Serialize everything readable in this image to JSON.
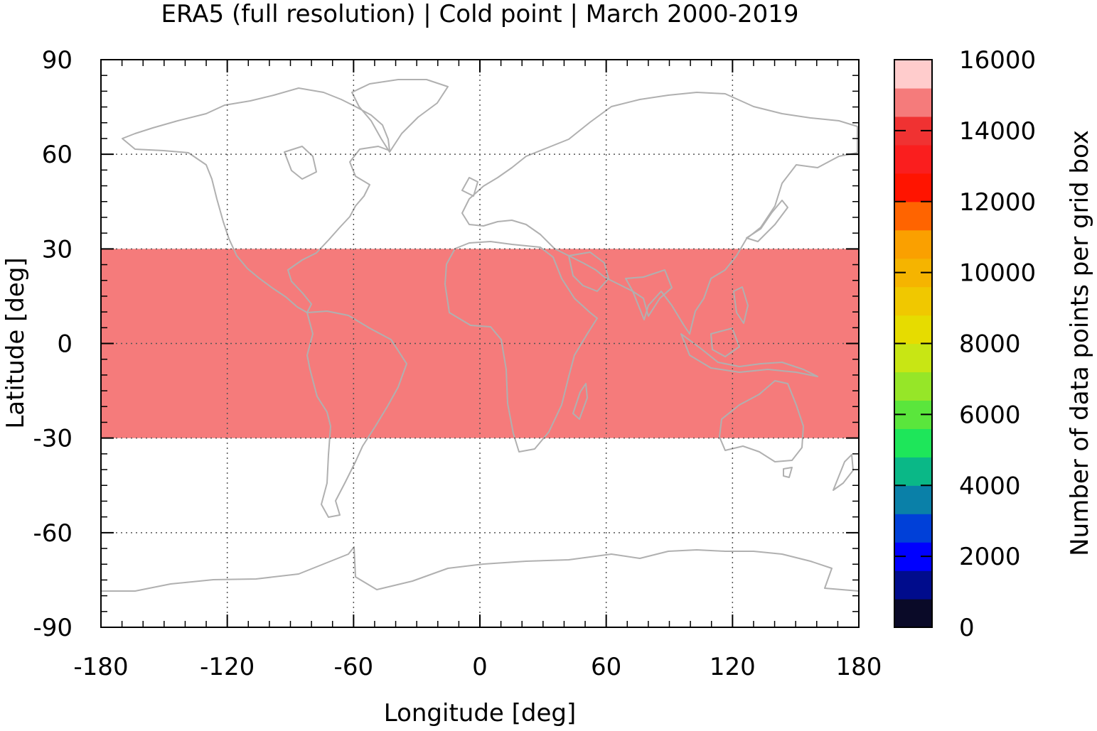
{
  "chart_data": {
    "type": "heatmap",
    "title": "ERA5 (full resolution) | Cold point | March 2000-2019",
    "xlabel": "Longitude [deg]",
    "ylabel": "Latitude [deg]",
    "xlim": [
      -180,
      180
    ],
    "ylim": [
      -90,
      90
    ],
    "x_ticks": [
      "-180",
      "-120",
      "-60",
      "0",
      "60",
      "120",
      "180"
    ],
    "y_ticks": [
      "90",
      "60",
      "30",
      "0",
      "-30",
      "-60",
      "-90"
    ],
    "grid": true,
    "grid_style": "dotted",
    "map_background": "coastlines",
    "coastline_color": "#b0b0b0",
    "regions": [
      {
        "lon": [
          -180,
          180
        ],
        "lat": [
          -30,
          30
        ],
        "value": 14500,
        "color": "#f57b7b"
      }
    ],
    "colorbar": {
      "label": "Number of data points per grid box",
      "range": [
        0,
        16000
      ],
      "ticks": [
        "0",
        "2000",
        "4000",
        "6000",
        "8000",
        "10000",
        "12000",
        "14000",
        "16000"
      ],
      "colors": [
        "#0a0a28",
        "#000c8c",
        "#0000ff",
        "#0040d8",
        "#0a80a8",
        "#0ab887",
        "#1ee65a",
        "#5ae63c",
        "#96e628",
        "#c8e614",
        "#e6dc00",
        "#f0c800",
        "#f5b400",
        "#faa000",
        "#ff6400",
        "#ff1400",
        "#fa1e1e",
        "#f03232",
        "#f57b7b",
        "#ffcccc"
      ],
      "position": "right"
    }
  }
}
